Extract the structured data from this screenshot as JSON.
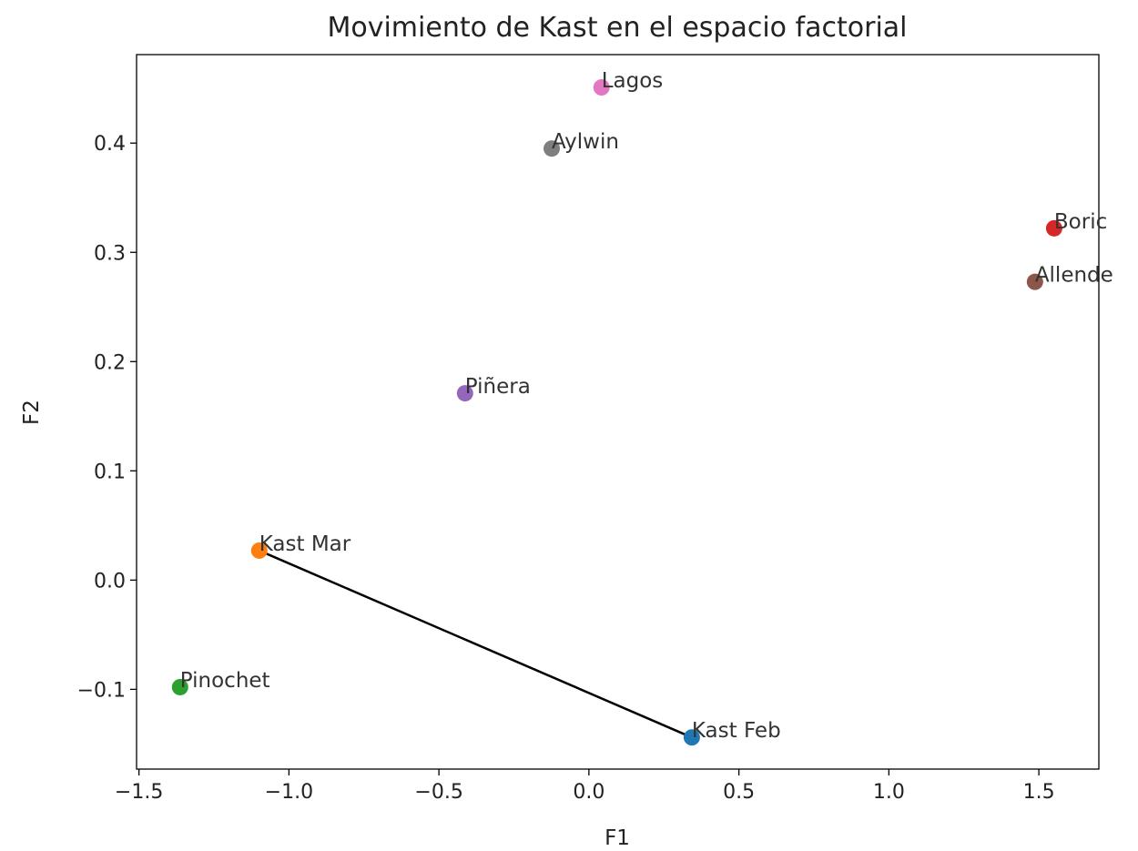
{
  "chart_data": {
    "type": "scatter",
    "title": "Movimiento de Kast en el espacio factorial",
    "x_label": "F1",
    "y_label": "F2",
    "labels": [
      "Kast Feb",
      "Kast Mar",
      "Pinochet",
      "Boric",
      "Piñera",
      "Allende",
      "Lagos",
      "Aylwin"
    ],
    "x": [
      0.343,
      -1.099,
      -1.363,
      1.551,
      -0.413,
      1.487,
      0.042,
      -0.124
    ],
    "values": [
      -0.144,
      0.027,
      -0.098,
      0.322,
      0.171,
      0.273,
      0.451,
      0.395
    ],
    "colors": [
      "#1f77b4",
      "#ff7f0e",
      "#2ca02c",
      "#d62728",
      "#9467bd",
      "#8c564b",
      "#e377c2",
      "#7f7f7f"
    ],
    "line_color": "#000000",
    "xlim": [
      -1.508,
      1.7
    ],
    "ylim": [
      -0.173,
      0.481
    ],
    "xticks": [
      {
        "value": -1.5,
        "label": "−1.5"
      },
      {
        "value": -1.0,
        "label": "−1.0"
      },
      {
        "value": -0.5,
        "label": "−0.5"
      },
      {
        "value": 0.0,
        "label": "0.0"
      },
      0.5,
      {
        "value": 1.0,
        "label": "1.0"
      },
      1.5
    ],
    "yticks": [
      {
        "value": -0.1,
        "label": "−0.1"
      },
      {
        "value": 0.0,
        "label": "0.0"
      },
      0.1,
      0.2,
      0.3,
      0.4
    ],
    "grid": false
  }
}
